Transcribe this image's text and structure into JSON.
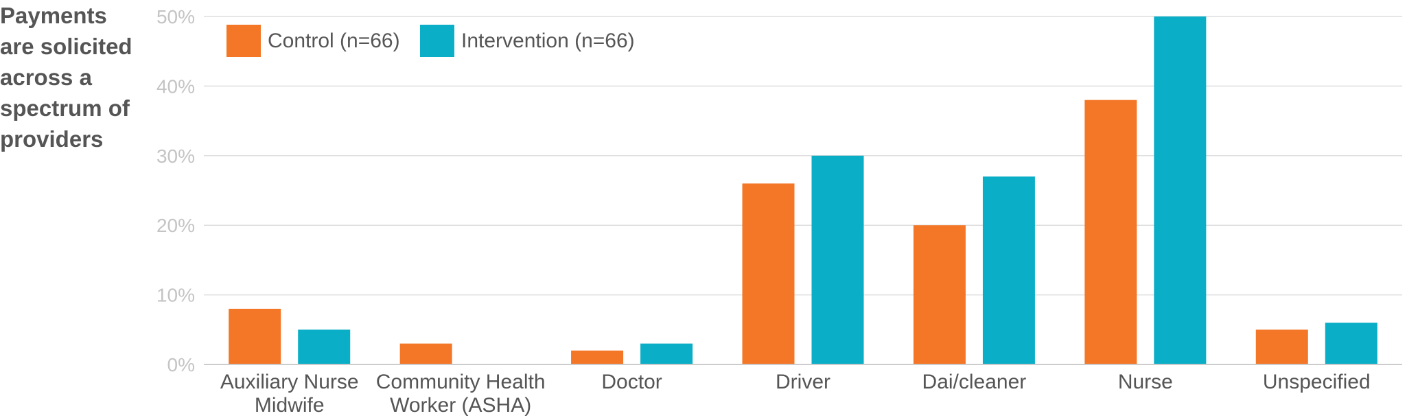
{
  "chart_data": {
    "type": "bar",
    "title": "Payments\nare solicited\nacross a\nspectrum of\nproviders",
    "categories": [
      [
        "Auxiliary Nurse",
        "Midwife"
      ],
      [
        "Community Health",
        "Worker (ASHA)"
      ],
      [
        "Doctor"
      ],
      [
        "Driver"
      ],
      [
        "Dai/cleaner"
      ],
      [
        "Nurse"
      ],
      [
        "Unspecified"
      ]
    ],
    "series": [
      {
        "name": "Control (n=66)",
        "color": "#f37726",
        "values": [
          8,
          3,
          2,
          26,
          20,
          38,
          5
        ]
      },
      {
        "name": "Intervention (n=66)",
        "color": "#0aaec7",
        "values": [
          5,
          0,
          3,
          30,
          27,
          50,
          6
        ]
      }
    ],
    "yticks": [
      "0%",
      "10%",
      "20%",
      "30%",
      "40%",
      "50%"
    ],
    "ylim": [
      0,
      50
    ],
    "grid": true,
    "legend_position": "top-left"
  }
}
